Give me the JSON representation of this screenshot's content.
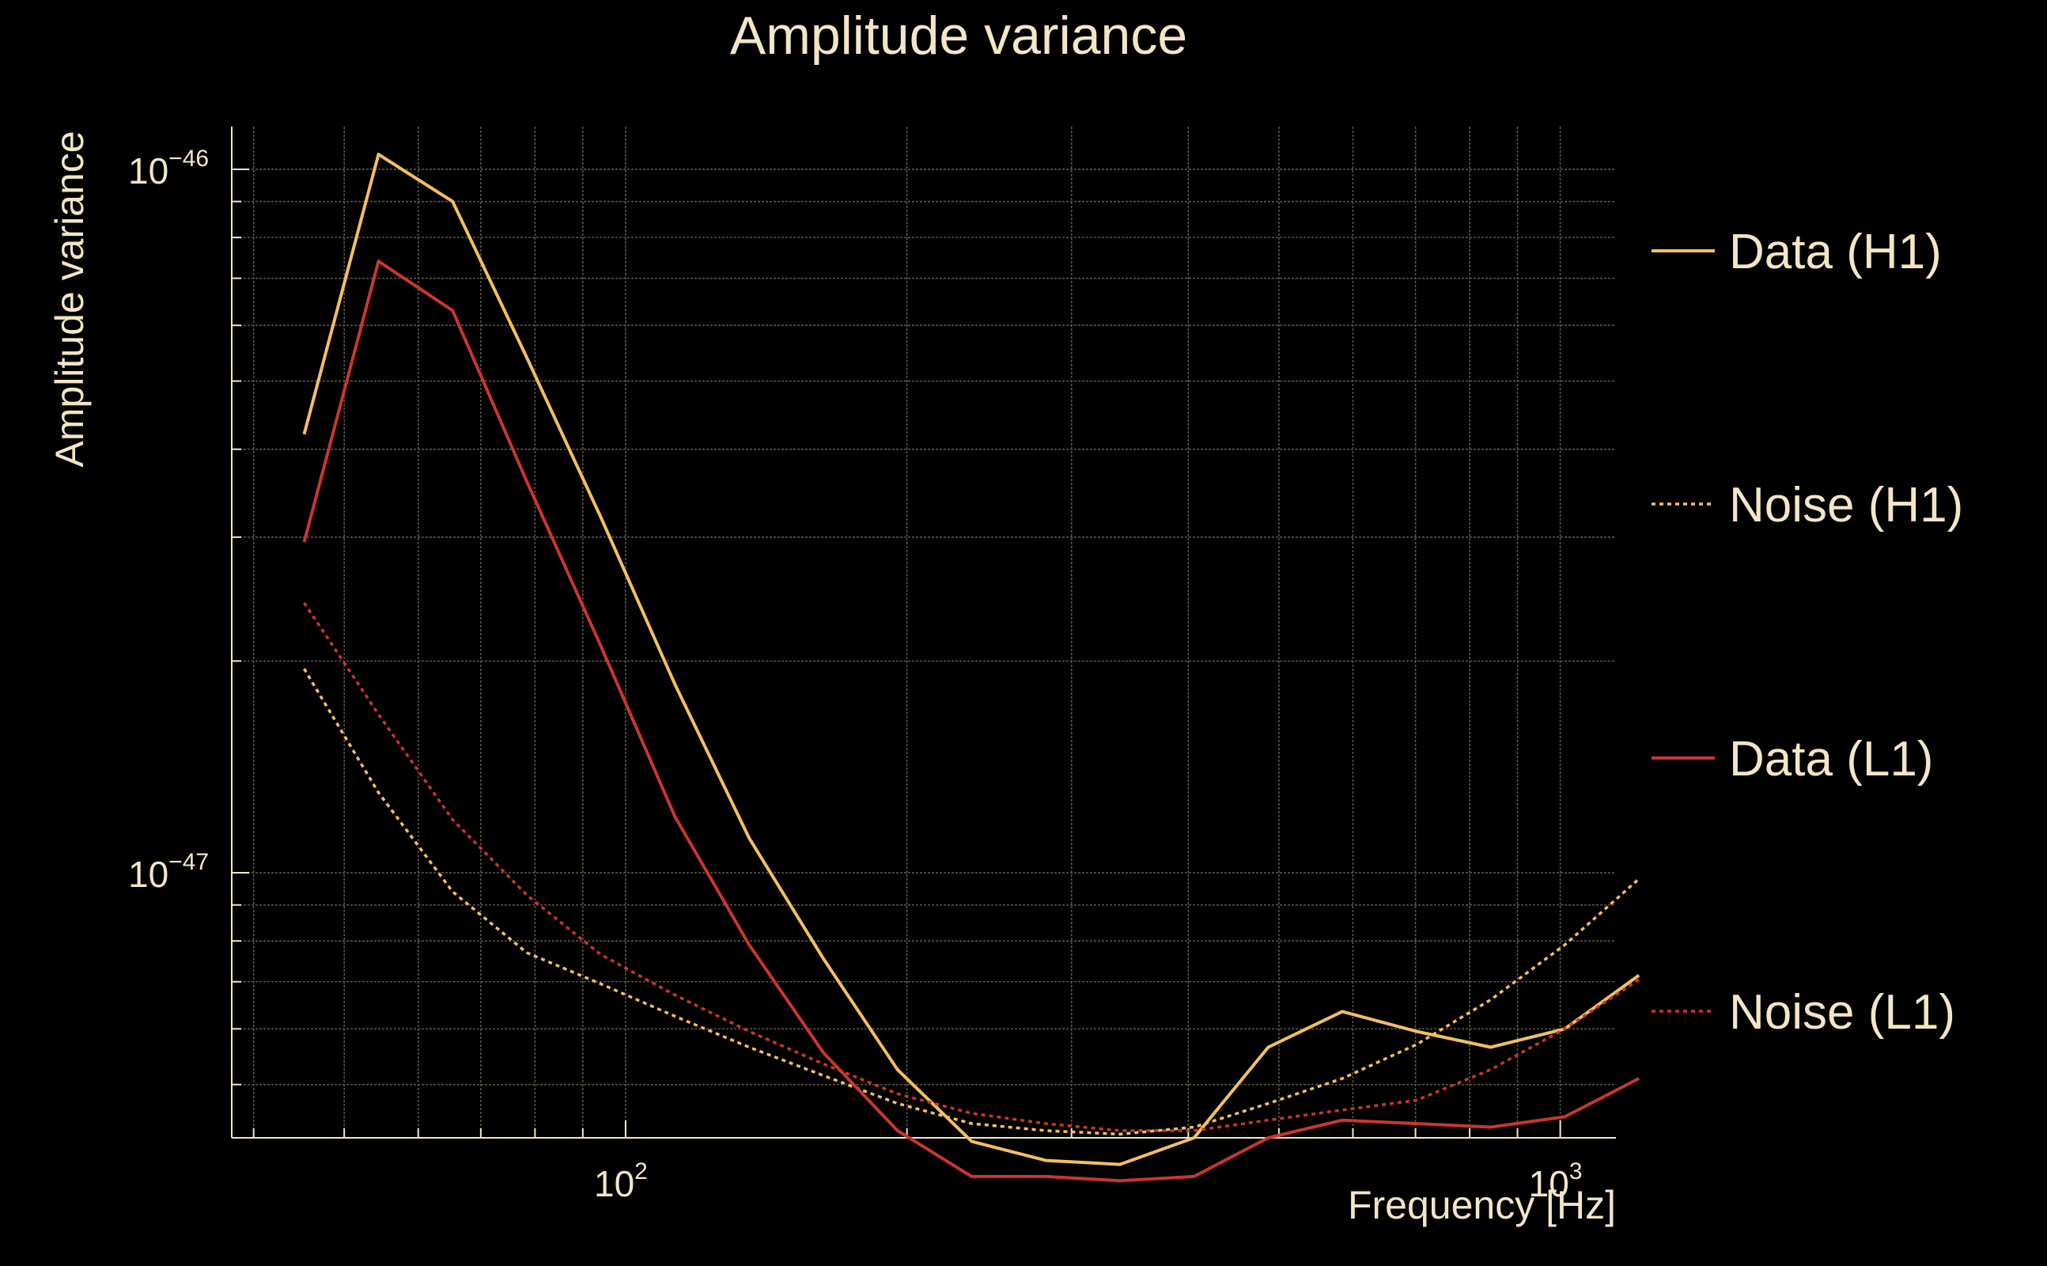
{
  "chart_data": {
    "type": "line",
    "title": "Amplitude variance",
    "xlabel": "Frequency [Hz]",
    "ylabel": "Amplitude variance",
    "x_scale": "log",
    "y_scale": "log",
    "xlim": [
      37.9,
      1147
    ],
    "ylim": [
      4.2e-48,
      1.15e-46
    ],
    "grid": true,
    "legend_position": "right",
    "x_ticks": [
      {
        "value": 100,
        "base": "10",
        "exp": "2"
      },
      {
        "value": 1000,
        "base": "10",
        "exp": "3"
      }
    ],
    "y_ticks": [
      {
        "value": 1e-47,
        "base": "10",
        "exp": "−47"
      },
      {
        "value": 1e-46,
        "base": "10",
        "exp": "−46"
      }
    ],
    "x": [
      45.3,
      54.4,
      65.3,
      78.4,
      94.1,
      113,
      135.6,
      162.8,
      195.4,
      234.6,
      281.6,
      338,
      405.7,
      487,
      584.6,
      701.8,
      842.4,
      1011.3,
      1214
    ],
    "series": [
      {
        "name": "Data (H1)",
        "color": "#f2c060",
        "dash": "solid",
        "values": [
          4.2e-47,
          1.05e-46,
          9e-47,
          5.4e-47,
          3.2e-47,
          1.85e-47,
          1.12e-47,
          7.55e-48,
          5.25e-48,
          4.15e-48,
          3.9e-48,
          3.85e-48,
          4.2e-48,
          5.65e-48,
          6.35e-48,
          5.95e-48,
          5.65e-48,
          6e-48,
          7.15e-48
        ]
      },
      {
        "name": "Noise (H1)",
        "color": "#f2c060",
        "dash": "dotted",
        "values": [
          1.95e-47,
          1.3e-47,
          9.4e-48,
          7.7e-48,
          6.95e-48,
          6.25e-48,
          5.65e-48,
          5.15e-48,
          4.7e-48,
          4.4e-48,
          4.3e-48,
          4.25e-48,
          4.35e-48,
          4.7e-48,
          5.1e-48,
          5.7e-48,
          6.6e-48,
          7.9e-48,
          9.8e-48
        ]
      },
      {
        "name": "Data (L1)",
        "color": "#c8372d",
        "dash": "solid",
        "values": [
          2.95e-47,
          7.4e-47,
          6.3e-47,
          3.6e-47,
          2.1e-47,
          1.2e-47,
          7.9e-48,
          5.55e-48,
          4.3e-48,
          3.7e-48,
          3.7e-48,
          3.65e-48,
          3.7e-48,
          4.2e-48,
          4.45e-48,
          4.4e-48,
          4.35e-48,
          4.5e-48,
          5.1e-48
        ]
      },
      {
        "name": "Noise (L1)",
        "color": "#c8372d",
        "dash": "dotted",
        "values": [
          2.42e-47,
          1.68e-47,
          1.19e-47,
          9.3e-48,
          7.65e-48,
          6.7e-48,
          5.95e-48,
          5.35e-48,
          4.85e-48,
          4.55e-48,
          4.4e-48,
          4.3e-48,
          4.3e-48,
          4.45e-48,
          4.6e-48,
          4.75e-48,
          5.25e-48,
          6e-48,
          7.05e-48
        ]
      }
    ]
  }
}
